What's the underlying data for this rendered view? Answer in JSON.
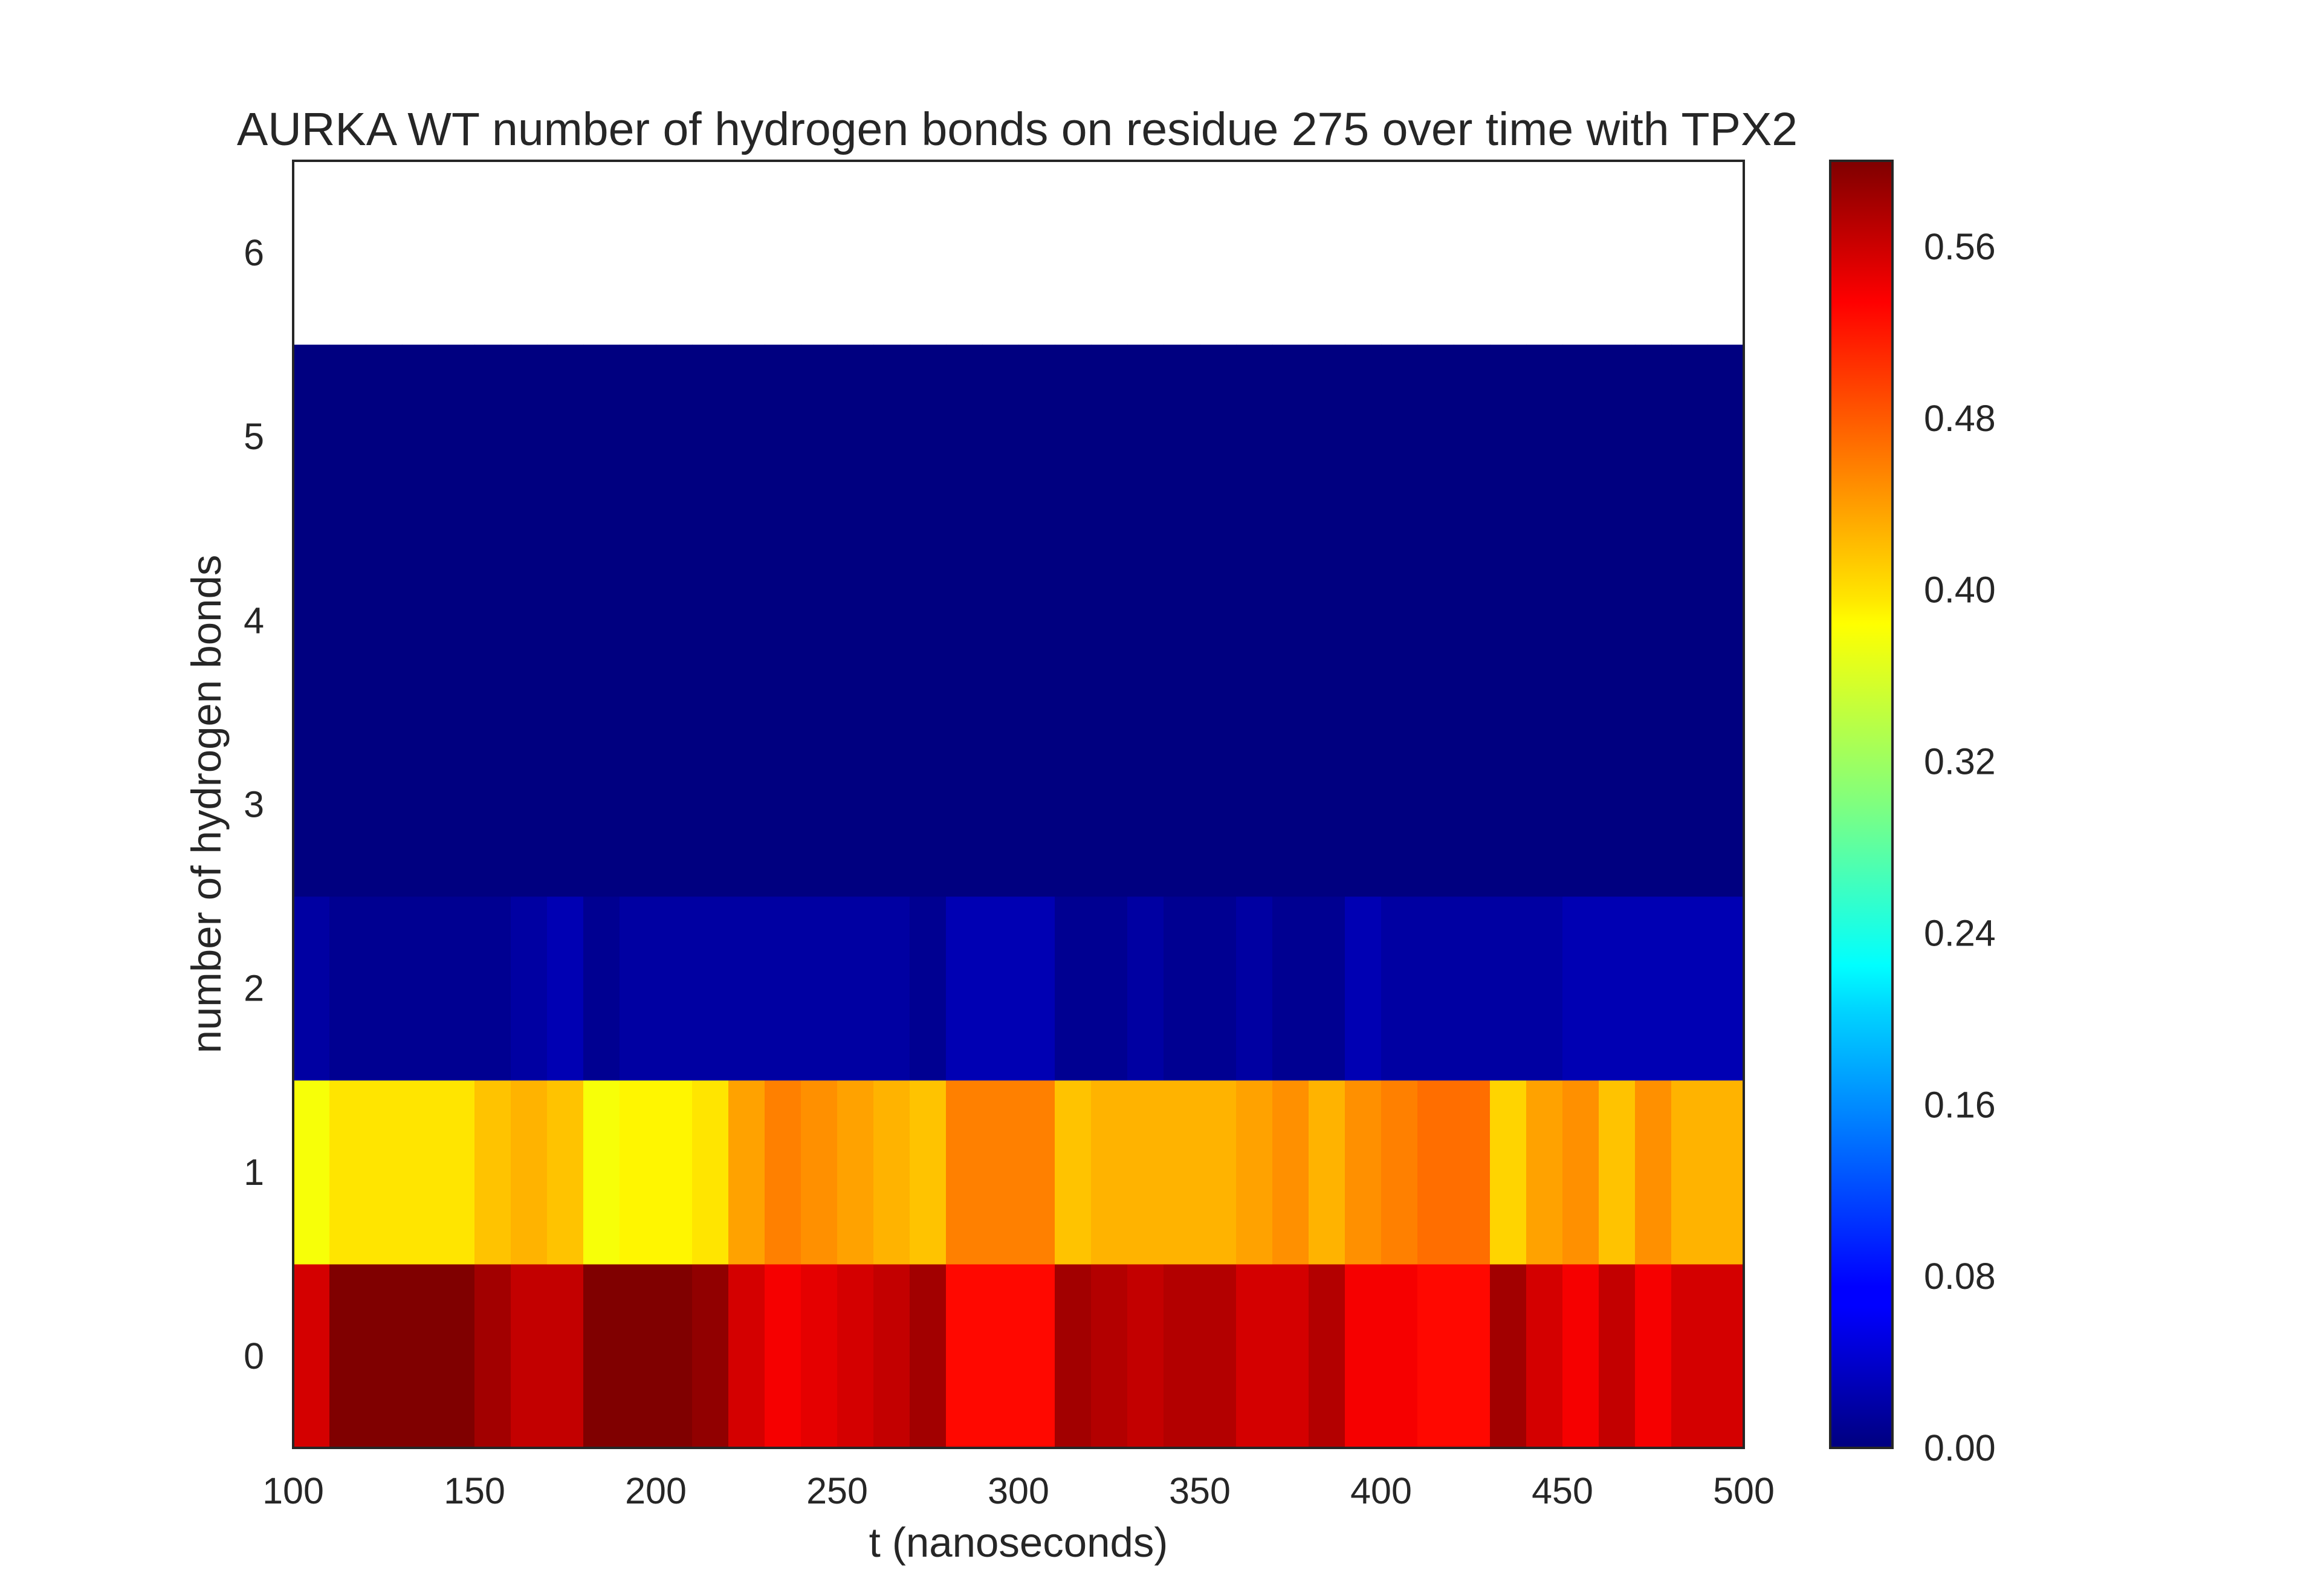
{
  "chart_data": {
    "type": "heatmap",
    "title": "AURKA WT number of hydrogen bonds on residue 275 over time with TPX2",
    "xlabel": "t (nanoseconds)",
    "ylabel": "number of hydrogen bonds",
    "xlim": [
      100,
      500
    ],
    "ylim": [
      -0.5,
      6.5
    ],
    "x_ticks": [
      "100",
      "150",
      "200",
      "250",
      "300",
      "350",
      "400",
      "450",
      "500"
    ],
    "y_ticks": [
      "0",
      "1",
      "2",
      "3",
      "4",
      "5",
      "6"
    ],
    "colormap": "jet",
    "color_range": [
      0.0,
      0.6
    ],
    "colorbar_ticks": [
      "0.00",
      "0.08",
      "0.16",
      "0.24",
      "0.32",
      "0.40",
      "0.48",
      "0.56"
    ],
    "x_bins": [
      100,
      110,
      120,
      130,
      140,
      150,
      160,
      170,
      180,
      190,
      200,
      210,
      220,
      230,
      240,
      250,
      260,
      270,
      280,
      290,
      300,
      310,
      320,
      330,
      340,
      350,
      360,
      370,
      380,
      390,
      400,
      410,
      420,
      430,
      440,
      450,
      460,
      470,
      480,
      490
    ],
    "bin_width": 10,
    "y_values": [
      0,
      1,
      2,
      3,
      4,
      5
    ],
    "grid": false,
    "values": [
      [
        0.55,
        0.37,
        0.02,
        0,
        0,
        0
      ],
      [
        0.6,
        0.39,
        0.01,
        0,
        0,
        0
      ],
      [
        0.6,
        0.39,
        0.01,
        0,
        0,
        0
      ],
      [
        0.61,
        0.39,
        0.01,
        0,
        0,
        0
      ],
      [
        0.61,
        0.39,
        0.01,
        0,
        0,
        0
      ],
      [
        0.58,
        0.41,
        0.01,
        0,
        0,
        0
      ],
      [
        0.56,
        0.42,
        0.02,
        0,
        0,
        0
      ],
      [
        0.56,
        0.41,
        0.03,
        0,
        0,
        0
      ],
      [
        0.62,
        0.37,
        0.01,
        0,
        0,
        0
      ],
      [
        0.6,
        0.38,
        0.02,
        0,
        0,
        0
      ],
      [
        0.6,
        0.38,
        0.02,
        0,
        0,
        0
      ],
      [
        0.59,
        0.39,
        0.02,
        0,
        0,
        0
      ],
      [
        0.55,
        0.43,
        0.02,
        0,
        0,
        0
      ],
      [
        0.53,
        0.45,
        0.02,
        0,
        0,
        0
      ],
      [
        0.54,
        0.44,
        0.02,
        0,
        0,
        0
      ],
      [
        0.55,
        0.43,
        0.02,
        0,
        0,
        0
      ],
      [
        0.56,
        0.42,
        0.02,
        0,
        0,
        0
      ],
      [
        0.58,
        0.41,
        0.01,
        0,
        0,
        0
      ],
      [
        0.52,
        0.45,
        0.03,
        0,
        0,
        0
      ],
      [
        0.52,
        0.45,
        0.03,
        0,
        0,
        0
      ],
      [
        0.52,
        0.45,
        0.03,
        0,
        0,
        0
      ],
      [
        0.58,
        0.41,
        0.01,
        0,
        0,
        0
      ],
      [
        0.57,
        0.42,
        0.01,
        0,
        0,
        0
      ],
      [
        0.56,
        0.42,
        0.02,
        0,
        0,
        0
      ],
      [
        0.57,
        0.42,
        0.01,
        0,
        0,
        0
      ],
      [
        0.57,
        0.42,
        0.01,
        0,
        0,
        0
      ],
      [
        0.55,
        0.43,
        0.02,
        0,
        0,
        0
      ],
      [
        0.55,
        0.44,
        0.01,
        0,
        0,
        0
      ],
      [
        0.57,
        0.42,
        0.01,
        0,
        0,
        0
      ],
      [
        0.53,
        0.44,
        0.03,
        0,
        0,
        0
      ],
      [
        0.53,
        0.45,
        0.02,
        0,
        0,
        0
      ],
      [
        0.52,
        0.46,
        0.02,
        0,
        0,
        0
      ],
      [
        0.52,
        0.46,
        0.02,
        0,
        0,
        0
      ],
      [
        0.58,
        0.4,
        0.02,
        0,
        0,
        0
      ],
      [
        0.55,
        0.43,
        0.02,
        0,
        0,
        0
      ],
      [
        0.53,
        0.44,
        0.03,
        0,
        0,
        0
      ],
      [
        0.56,
        0.41,
        0.03,
        0,
        0,
        0
      ],
      [
        0.53,
        0.44,
        0.03,
        0,
        0,
        0
      ],
      [
        0.55,
        0.42,
        0.03,
        0,
        0,
        0
      ],
      [
        0.55,
        0.42,
        0.03,
        0,
        0,
        0
      ]
    ]
  }
}
